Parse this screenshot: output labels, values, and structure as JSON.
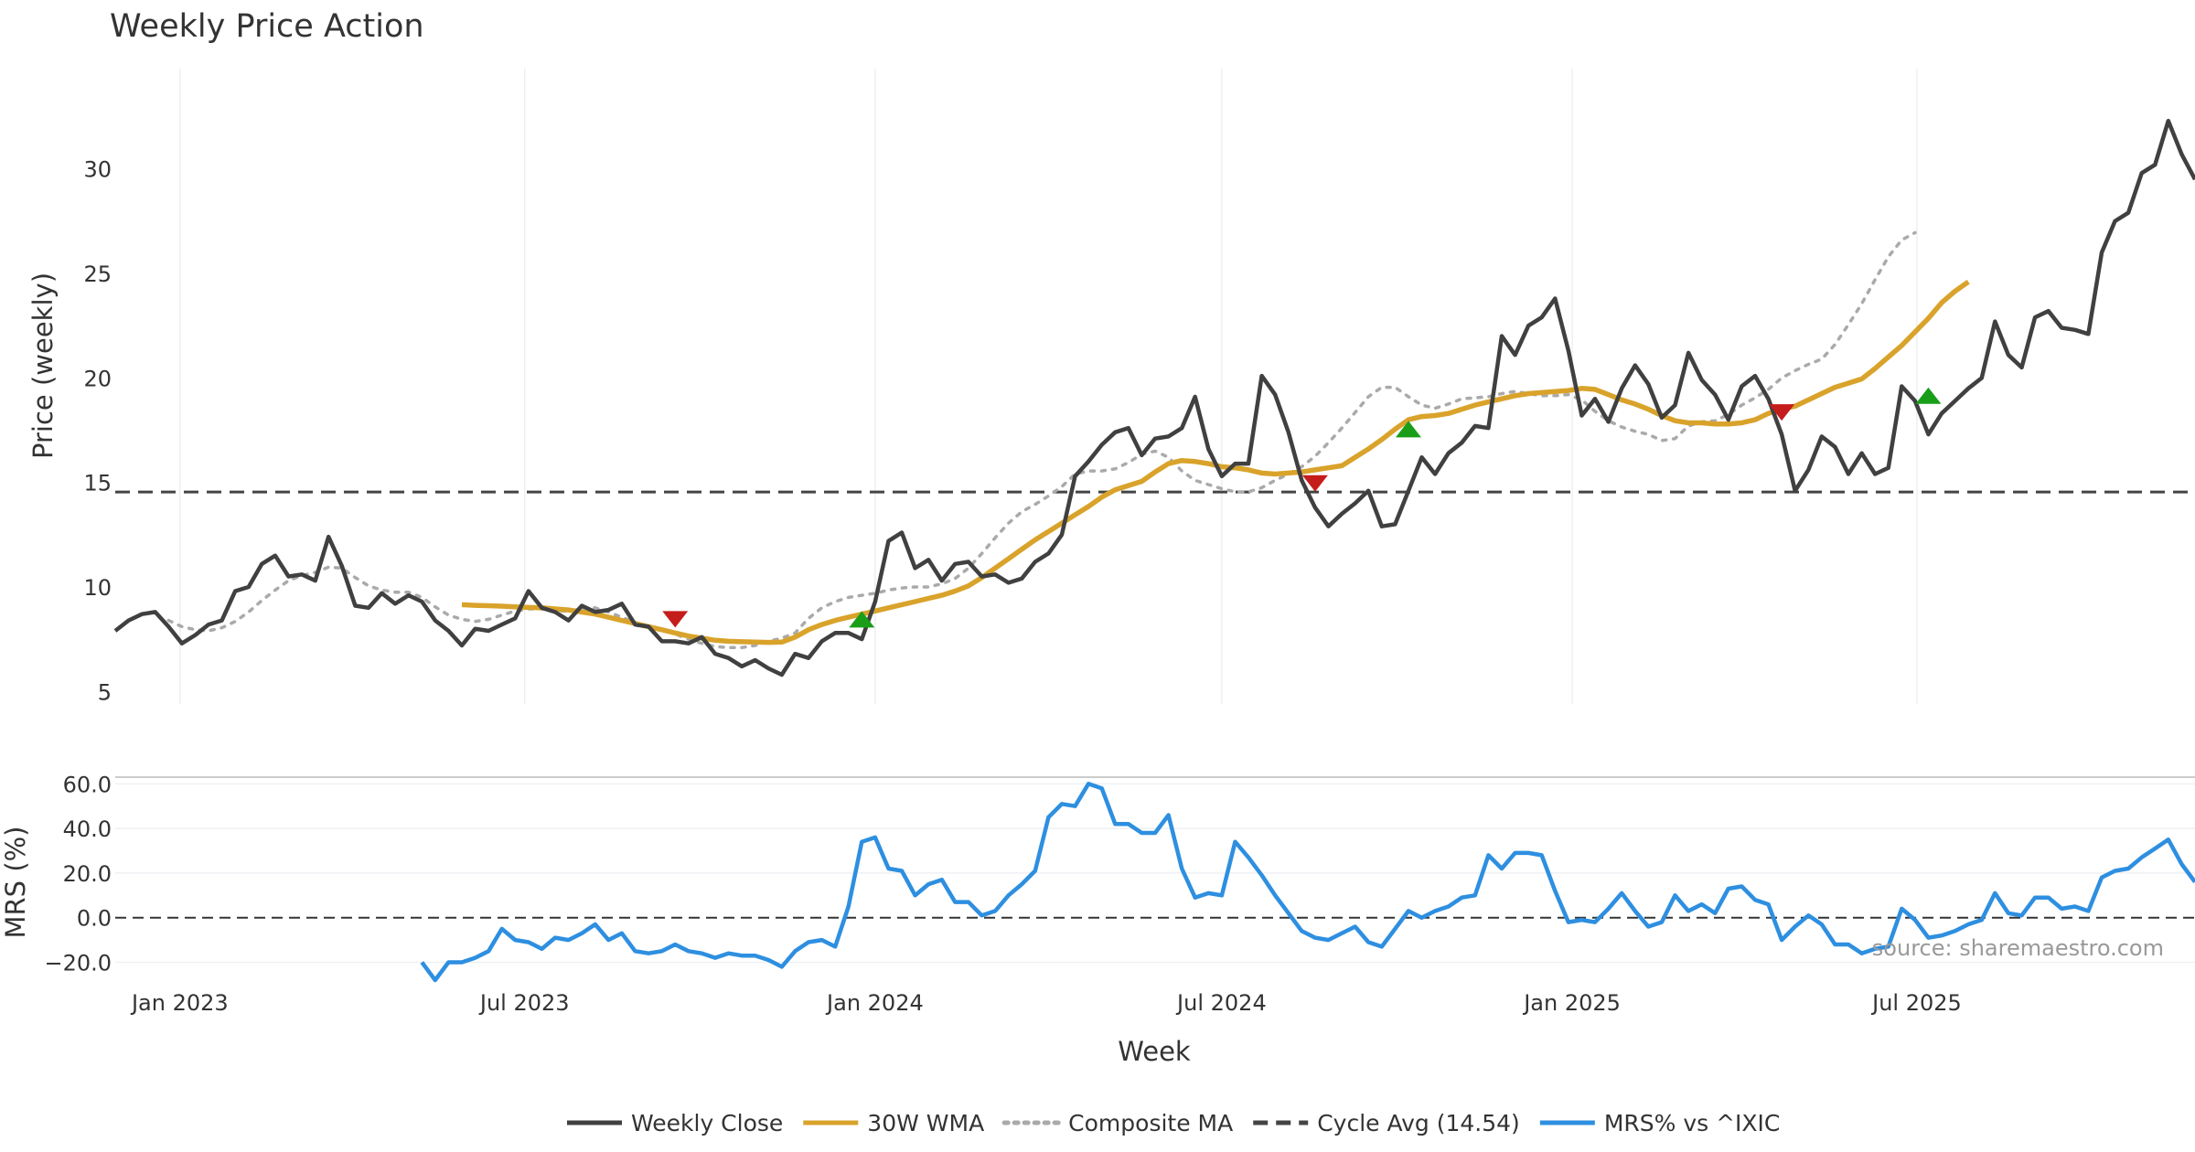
{
  "chart_data": [
    {
      "type": "line",
      "title": "Weekly Price Action",
      "xlabel": "",
      "ylabel": "Price (weekly)",
      "ylim": [
        4.4,
        34.8
      ],
      "yticks": [
        5,
        10,
        15,
        20,
        25,
        30
      ],
      "xlim": [
        "2022-11-28",
        "2025-11-24"
      ],
      "xticks": [
        {
          "date": "2023-01-01",
          "label": "Jan 2023"
        },
        {
          "date": "2023-07-01",
          "label": "Jul 2023"
        },
        {
          "date": "2024-01-01",
          "label": "Jan 2024"
        },
        {
          "date": "2024-07-01",
          "label": "Jul 2024"
        },
        {
          "date": "2025-01-01",
          "label": "Jan 2025"
        },
        {
          "date": "2025-07-01",
          "label": "Jul 2025"
        }
      ],
      "grid": "vertical",
      "cycle_avg": 14.54,
      "series": [
        {
          "name": "Weekly Close",
          "color": "#404040",
          "style": "solid",
          "start": "2022-11-28",
          "values": [
            7.9,
            8.4,
            8.7,
            8.8,
            8.1,
            7.3,
            7.7,
            8.2,
            8.4,
            9.8,
            10.0,
            11.1,
            11.5,
            10.5,
            10.6,
            10.3,
            12.4,
            11.0,
            9.1,
            9.0,
            9.7,
            9.2,
            9.6,
            9.3,
            8.4,
            7.9,
            7.2,
            8.0,
            7.9,
            8.2,
            8.5,
            9.8,
            9.0,
            8.8,
            8.4,
            9.1,
            8.8,
            8.9,
            9.2,
            8.2,
            8.1,
            7.4,
            7.4,
            7.3,
            7.6,
            6.8,
            6.6,
            6.2,
            6.5,
            6.1,
            5.8,
            6.8,
            6.6,
            7.4,
            7.8,
            7.8,
            7.5,
            9.3,
            12.2,
            12.6,
            10.9,
            11.3,
            10.3,
            11.1,
            11.2,
            10.5,
            10.6,
            10.2,
            10.4,
            11.2,
            11.6,
            12.5,
            15.3,
            16.0,
            16.8,
            17.4,
            17.6,
            16.3,
            17.1,
            17.2,
            17.6,
            19.1,
            16.6,
            15.3,
            15.9,
            15.9,
            20.1,
            19.2,
            17.4,
            15.1,
            13.8,
            12.9,
            13.5,
            14.0,
            14.6,
            12.9,
            13.0,
            14.6,
            16.2,
            15.4,
            16.4,
            16.9,
            17.7,
            17.6,
            22.0,
            21.1,
            22.5,
            22.9,
            23.8,
            21.3,
            18.2,
            19.0,
            17.9,
            19.5,
            20.6,
            19.7,
            18.1,
            18.7,
            21.2,
            19.9,
            19.2,
            18.0,
            19.6,
            20.1,
            19.0,
            17.3,
            14.6,
            15.6,
            17.2,
            16.7,
            15.4,
            16.4,
            15.4,
            15.7,
            19.6,
            18.9,
            17.3,
            18.3,
            18.9,
            19.5,
            20.0,
            22.7,
            21.1,
            20.5,
            22.9,
            23.2,
            22.4,
            22.3,
            22.1,
            26.0,
            27.5,
            27.9,
            29.8,
            30.2,
            32.3,
            30.7,
            29.5
          ]
        },
        {
          "name": "30W WMA",
          "color": "#D9A32B",
          "style": "solid",
          "start": "2023-05-29",
          "values": [
            9.15,
            9.12,
            9.1,
            9.08,
            9.05,
            9.02,
            9.0,
            8.95,
            8.9,
            8.8,
            8.7,
            8.55,
            8.4,
            8.25,
            8.1,
            7.95,
            7.8,
            7.65,
            7.55,
            7.45,
            7.4,
            7.38,
            7.36,
            7.35,
            7.36,
            7.6,
            7.95,
            8.2,
            8.4,
            8.55,
            8.7,
            8.85,
            9.0,
            9.15,
            9.3,
            9.45,
            9.6,
            9.8,
            10.05,
            10.45,
            10.9,
            11.35,
            11.8,
            12.25,
            12.65,
            13.05,
            13.45,
            13.85,
            14.3,
            14.65,
            14.85,
            15.05,
            15.5,
            15.9,
            16.05,
            16.0,
            15.9,
            15.75,
            15.7,
            15.6,
            15.45,
            15.4,
            15.45,
            15.5,
            15.6,
            15.7,
            15.8,
            16.2,
            16.6,
            17.05,
            17.55,
            18.0,
            18.15,
            18.2,
            18.3,
            18.5,
            18.7,
            18.85,
            19.0,
            19.15,
            19.25,
            19.3,
            19.35,
            19.4,
            19.5,
            19.45,
            19.2,
            18.95,
            18.75,
            18.5,
            18.2,
            17.95,
            17.85,
            17.85,
            17.8,
            17.8,
            17.85,
            18.0,
            18.3,
            18.5,
            18.65,
            18.95,
            19.25,
            19.55,
            19.75,
            19.95,
            20.45,
            21.0,
            21.55,
            22.2,
            22.85,
            23.6,
            24.15,
            24.6
          ]
        },
        {
          "name": "Composite MA",
          "color": "#AAAAAA",
          "style": "dotted",
          "start": "2022-12-26",
          "values": [
            8.4,
            8.1,
            7.95,
            7.9,
            8.05,
            8.35,
            8.8,
            9.35,
            9.85,
            10.3,
            10.55,
            10.7,
            10.95,
            10.9,
            10.45,
            10.05,
            9.85,
            9.75,
            9.75,
            9.5,
            9.05,
            8.65,
            8.45,
            8.35,
            8.45,
            8.65,
            8.85,
            8.95,
            8.95,
            8.85,
            8.85,
            8.95,
            9.0,
            8.8,
            8.55,
            8.3,
            8.1,
            7.95,
            7.75,
            7.5,
            7.3,
            7.15,
            7.1,
            7.1,
            7.2,
            7.4,
            7.55,
            7.8,
            8.5,
            9.0,
            9.3,
            9.5,
            9.6,
            9.7,
            9.85,
            9.95,
            10.0,
            10.0,
            10.15,
            10.4,
            10.9,
            11.6,
            12.35,
            13.05,
            13.6,
            13.95,
            14.35,
            14.8,
            15.4,
            15.55,
            15.55,
            15.65,
            15.95,
            16.35,
            16.5,
            16.2,
            15.55,
            15.1,
            14.9,
            14.7,
            14.55,
            14.55,
            14.75,
            15.1,
            15.4,
            15.75,
            16.25,
            16.9,
            17.6,
            18.35,
            19.1,
            19.55,
            19.55,
            19.1,
            18.7,
            18.55,
            18.75,
            19.0,
            19.05,
            19.1,
            19.25,
            19.35,
            19.25,
            19.15,
            19.15,
            19.2,
            18.95,
            18.4,
            17.95,
            17.65,
            17.45,
            17.3,
            17.0,
            17.1,
            17.7,
            17.9,
            17.95,
            18.25,
            18.7,
            19.05,
            19.45,
            20.0,
            20.35,
            20.65,
            20.9,
            21.6,
            22.55,
            23.55,
            24.7,
            25.8,
            26.6,
            26.95
          ]
        }
      ],
      "annotations": [
        {
          "type": "signal-down",
          "date": "2023-09-18",
          "value": 8.45,
          "color": "#C51C1C"
        },
        {
          "type": "signal-up",
          "date": "2023-12-25",
          "value": 8.45,
          "color": "#1A9E1A"
        },
        {
          "type": "signal-down",
          "date": "2024-08-19",
          "value": 14.95,
          "color": "#C51C1C"
        },
        {
          "type": "signal-up",
          "date": "2024-10-07",
          "value": 17.55,
          "color": "#1A9E1A"
        },
        {
          "type": "signal-down",
          "date": "2025-04-21",
          "value": 18.35,
          "color": "#C51C1C"
        },
        {
          "type": "signal-up",
          "date": "2025-07-07",
          "value": 19.15,
          "color": "#1A9E1A"
        }
      ]
    },
    {
      "type": "line",
      "title": "",
      "xlabel": "Week",
      "ylabel": "MRS (%)",
      "ylim": [
        -28,
        63
      ],
      "yticks": [
        -20,
        0,
        20,
        40,
        60
      ],
      "ytick_labels": [
        "−20.0",
        "0.0",
        "20.0",
        "40.0",
        "60.0"
      ],
      "grid": "horizontal",
      "zero_line": true,
      "series": [
        {
          "name": "MRS% vs ^IXIC",
          "color": "#2E8FE0",
          "style": "solid",
          "start": "2023-05-08",
          "values": [
            -20,
            -28,
            -20,
            -20,
            -18,
            -15,
            -5,
            -10,
            -11,
            -14,
            -9,
            -10,
            -7,
            -3,
            -10,
            -7,
            -15,
            -16,
            -15,
            -12,
            -15,
            -16,
            -18,
            -16,
            -17,
            -17,
            -19,
            -22,
            -15,
            -11,
            -10,
            -13,
            5,
            34,
            36,
            22,
            21,
            10,
            15,
            17,
            7,
            7,
            1,
            3,
            10,
            15,
            21,
            45,
            51,
            50,
            60,
            58,
            42,
            42,
            38,
            38,
            46,
            22,
            9,
            11,
            10,
            34,
            27,
            19,
            10,
            2,
            -6,
            -9,
            -10,
            -7,
            -4,
            -11,
            -13,
            -5,
            3,
            0,
            3,
            5,
            9,
            10,
            28,
            22,
            29,
            29,
            28,
            12,
            -2,
            -1,
            -2,
            4,
            11,
            3,
            -4,
            -2,
            10,
            3,
            6,
            2,
            13,
            14,
            8,
            6,
            -10,
            -4,
            1,
            -3,
            -12,
            -12,
            -16,
            -14,
            -13,
            4,
            -1,
            -9,
            -8,
            -6,
            -3,
            -1,
            11,
            2,
            1,
            9,
            9,
            4,
            5,
            3,
            18,
            21,
            22,
            27,
            31,
            35,
            24,
            16
          ]
        }
      ]
    }
  ],
  "legend": [
    {
      "name": "Weekly Close",
      "color": "#404040",
      "style": "solid"
    },
    {
      "name": "30W WMA",
      "color": "#D9A32B",
      "style": "solid"
    },
    {
      "name": "Composite MA",
      "color": "#AAAAAA",
      "style": "dotted"
    },
    {
      "name": "Cycle Avg (14.54)",
      "color": "#444444",
      "style": "dashed"
    },
    {
      "name": "MRS% vs ^IXIC",
      "color": "#2E8FE0",
      "style": "solid"
    }
  ],
  "source_note": "source: sharemaestro.com"
}
